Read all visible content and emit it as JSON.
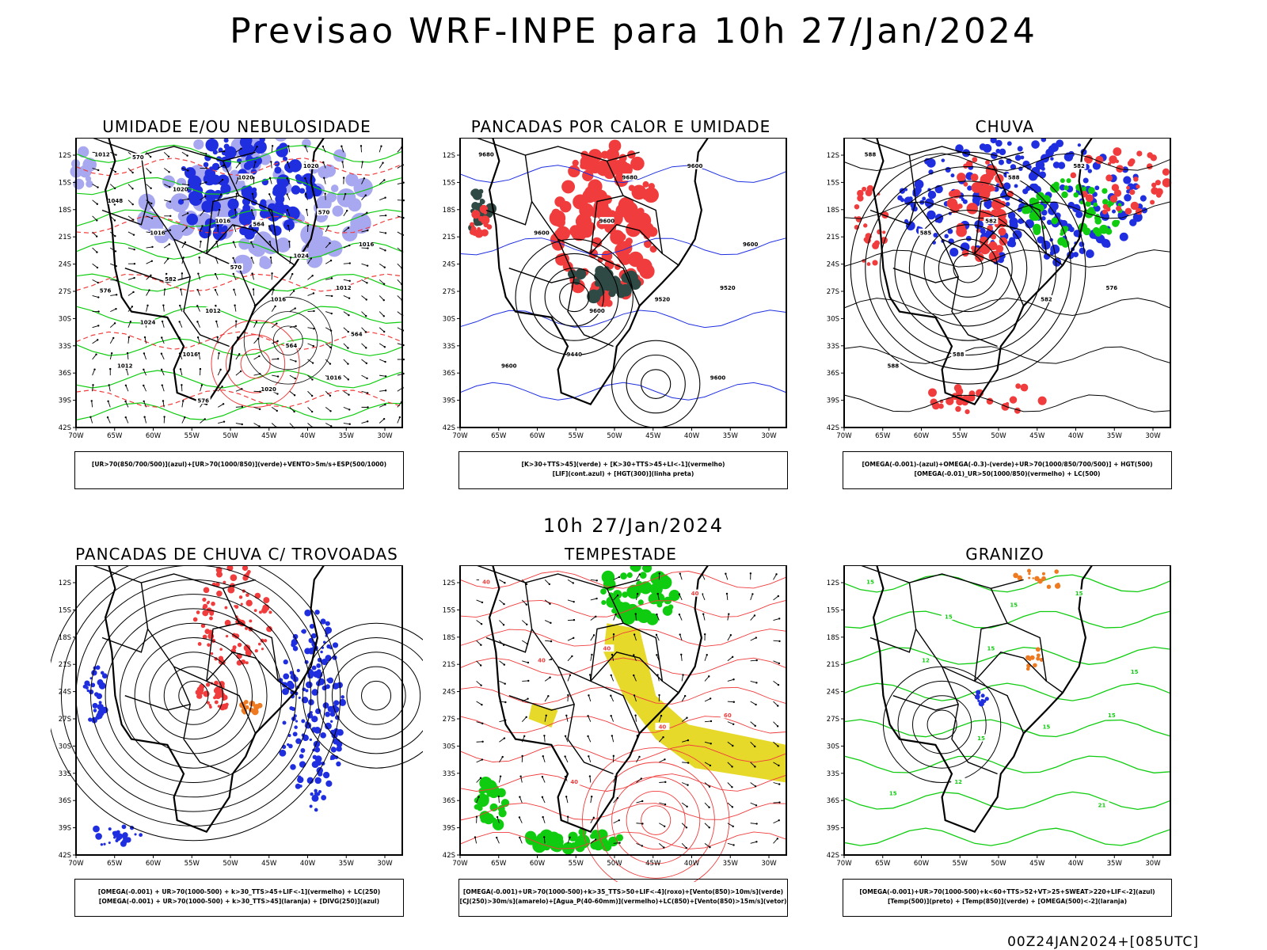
{
  "title": "Previsao WRF-INPE  para 10h 27/Jan/2024",
  "mid_title": "10h 27/Jan/2024",
  "footer": "00Z24JAN2024+[085UTC]",
  "axes": {
    "lat_labels": [
      "12S",
      "15S",
      "18S",
      "21S",
      "24S",
      "27S",
      "30S",
      "33S",
      "36S",
      "39S",
      "42S"
    ],
    "lon_labels": [
      "70W",
      "65W",
      "60W",
      "55W",
      "50W",
      "45W",
      "40W",
      "35W",
      "30W"
    ]
  },
  "panels": [
    {
      "id": "umidade",
      "title": "UMIDADE E/OU NEBULOSIDADE",
      "legend": [
        "[UR>70(850/700/500)](azul)+[UR>70(1000/850)](verde)+VENTO>5m/s+ESP(500/1000)"
      ],
      "labels": [
        "1012",
        "1016",
        "1012",
        "1016",
        "1020",
        "1016",
        "1016",
        "1012",
        "1020",
        "1016",
        "1012",
        "1016",
        "1020",
        "1024",
        "1024",
        "1020",
        "1048",
        "570",
        "564",
        "576",
        "570",
        "582",
        "564",
        "570",
        "564",
        "576"
      ]
    },
    {
      "id": "pancadas-calor",
      "title": "PANCADAS POR CALOR E UMIDADE",
      "legend": [
        "[K>30+TTS>45](verde) + [K>30+TTS>45+LI<-1](vermelho)",
        "[LIF](cont.azul) + [HGT(300)](linha preta)"
      ],
      "labels": [
        "9680",
        "9600",
        "9520",
        "9440",
        "9600",
        "9600",
        "9520",
        "9600",
        "9680",
        "9600",
        "9600",
        "9600"
      ]
    },
    {
      "id": "chuva",
      "title": "CHUVA",
      "legend": [
        "[OMEGA(-0.001)-(azul)+OMEGA(-0.3)-(verde)+UR>70(1000/850/700/500)] + HGT(500)",
        "[OMEGA(-0.01)_UR>50(1000/850)(vermelho) + LC(500)"
      ],
      "labels": [
        "588",
        "582",
        "576",
        "588",
        "582",
        "585",
        "582",
        "588",
        "588"
      ]
    },
    {
      "id": "trovoadas",
      "title": "PANCADAS DE CHUVA C/ TROVOADAS",
      "legend": [
        "[OMEGA(-0.001) + UR>70(1000-500) + k>30_TTS>45+LIF<-1](vermelho) + LC(250)",
        "[OMEGA(-0.001) + UR>70(1000-500) + k>30_TTS>45](laranja) + [DIVG(250)](azul)"
      ],
      "labels": []
    },
    {
      "id": "tempestade",
      "title": "TEMPESTADE",
      "legend": [
        "[OMEGA(-0.001)+UR>70(1000-500)+k>35_TTS>50+LIF<-4](roxo)+[Vento(850)>10m/s](verde)",
        "[CJ(250)>30m/s](amarelo)+[Agua_P(40-60mm)](vermelho)+LC(850)+[Vento(850)>15m/s](vetor)"
      ],
      "labels": [
        "40",
        "40",
        "60",
        "40",
        "40",
        "40",
        "40"
      ]
    },
    {
      "id": "granizo",
      "title": "GRANIZO",
      "legend": [
        "[OMEGA(-0.001)+UR>70(1000-500)+k<60+TTS>52+VT>25+SWEAT>220+LIF<-2](azul)",
        "[Temp(500)](preto) + [Temp(850)](verde) + [OMEGA(500)<-2](laranja)"
      ],
      "labels": [
        "15",
        "15",
        "15",
        "12",
        "15",
        "12",
        "15",
        "15",
        "15",
        "15",
        "15",
        "21",
        "15"
      ]
    }
  ],
  "colors": {
    "blue": "#1f2fe0",
    "light_blue": "#a8a8f0",
    "green": "#10cc10",
    "red": "#f03c3c",
    "yellow": "#e6d92a",
    "orange": "#ee7a22",
    "dark": "#2f4a44",
    "black": "#000000"
  }
}
